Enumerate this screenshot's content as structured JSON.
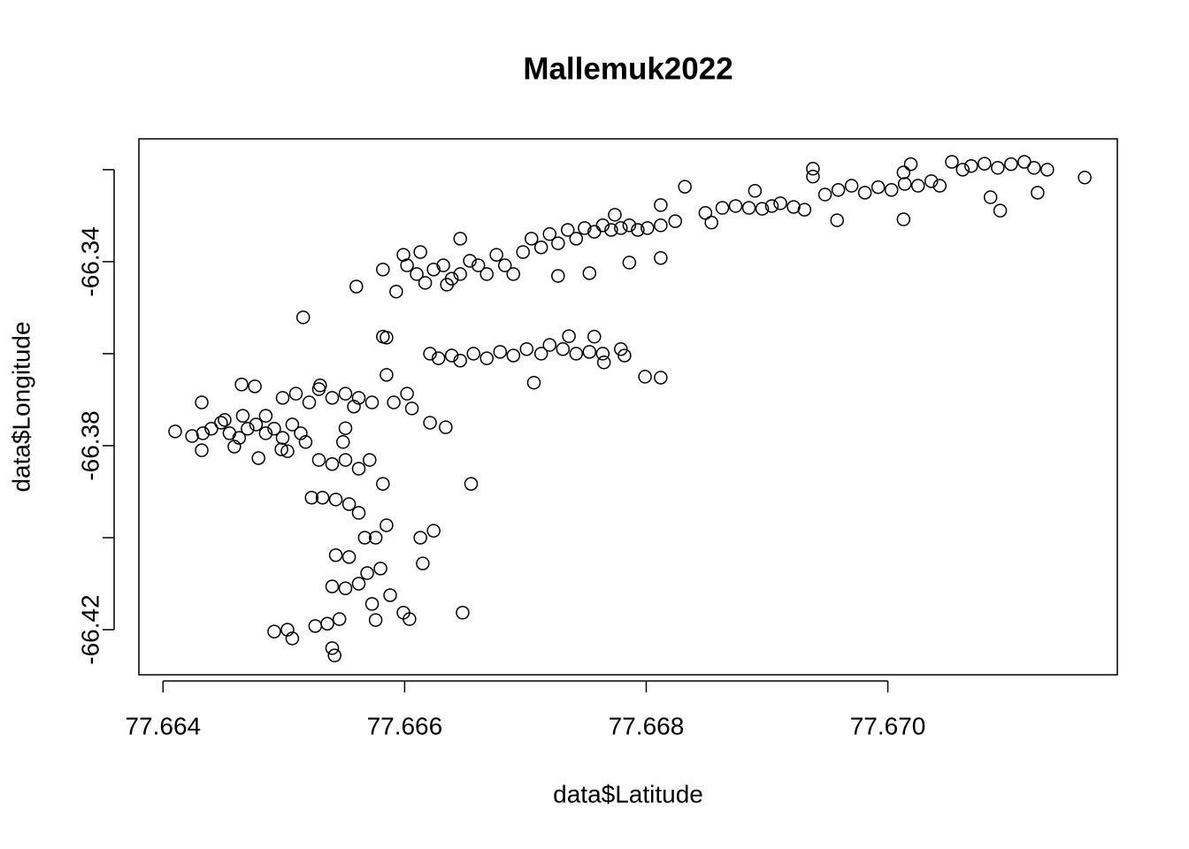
{
  "chart_data": {
    "type": "scatter",
    "title": "Mallemuk2022",
    "x_label": "data$Latitude",
    "y_label": "data$Longitude",
    "color": "#000000",
    "xlim": [
      77.6638,
      77.6719
    ],
    "ylim": [
      -66.4298,
      -66.3133
    ],
    "xticks": [
      77.664,
      77.666,
      77.668,
      {
        "value": 77.67,
        "label": "77.670"
      }
    ],
    "yticks": [
      {
        "value": -66.32,
        "label": null
      },
      -66.34,
      {
        "value": -66.36,
        "label": null
      },
      -66.38,
      {
        "value": -66.4,
        "label": null
      },
      -66.42
    ],
    "x": [
      77.6641,
      77.66424,
      77.66433,
      77.66432,
      77.6644,
      77.66448,
      77.66455,
      77.66463,
      77.6647,
      77.66477,
      77.66485,
      77.66492,
      77.66499,
      77.66507,
      77.66514,
      77.66459,
      77.66479,
      77.66498,
      77.66465,
      77.66476,
      77.66432,
      77.66451,
      77.66466,
      77.66485,
      77.66503,
      77.66518,
      77.66499,
      77.6651,
      77.66521,
      77.66529,
      77.6654,
      77.66551,
      77.66562,
      77.66573,
      77.66585,
      77.66591,
      77.66602,
      77.66606,
      77.66621,
      77.66634,
      77.6653,
      77.66558,
      77.66529,
      77.6654,
      77.66551,
      77.66562,
      77.66571,
      77.66582,
      77.66523,
      77.66532,
      77.66543,
      77.66554,
      77.66562,
      77.66567,
      77.66576,
      77.66585,
      77.66543,
      77.66554,
      77.66569,
      77.6658,
      77.6654,
      77.66551,
      77.66562,
      77.66573,
      77.66588,
      77.66599,
      77.66604,
      77.66492,
      77.66503,
      77.66507,
      77.66526,
      77.66536,
      77.66546,
      77.6654,
      77.66542,
      77.66576,
      77.66613,
      77.66624,
      77.66615,
      77.66655,
      77.66648,
      77.66582,
      77.66585,
      77.66516,
      77.6656,
      77.66549,
      77.66551,
      77.66582,
      77.66593,
      77.66602,
      77.6661,
      77.66617,
      77.66624,
      77.66632,
      77.66639,
      77.66646,
      77.66654,
      77.66661,
      77.66668,
      77.66676,
      77.66683,
      77.6669,
      77.66646,
      77.66599,
      77.66613,
      77.66635,
      77.66698,
      77.66705,
      77.66713,
      77.6672,
      77.66727,
      77.66735,
      77.66742,
      77.66749,
      77.66757,
      77.66764,
      77.66771,
      77.66779,
      77.66786,
      77.66793,
      77.66801,
      77.66812,
      77.66824,
      77.66812,
      77.66774,
      77.66753,
      77.66727,
      77.66786,
      77.66812,
      77.66621,
      77.66628,
      77.66639,
      77.66646,
      77.66657,
      77.66668,
      77.66679,
      77.6669,
      77.66701,
      77.66713,
      77.6672,
      77.66731,
      77.66742,
      77.66753,
      77.66764,
      77.66779,
      77.66782,
      77.66765,
      77.66707,
      77.66799,
      77.66812,
      77.66736,
      77.66757,
      77.66832,
      77.66849,
      77.66854,
      77.66863,
      77.66874,
      77.66885,
      77.6689,
      77.66896,
      77.66904,
      77.66911,
      77.66922,
      77.66931,
      77.66938,
      77.66938,
      77.66948,
      77.66959,
      77.6697,
      77.66981,
      77.66992,
      77.67003,
      77.67014,
      77.67025,
      77.67036,
      77.67043,
      77.66958,
      77.67013,
      77.67019,
      77.67013,
      77.67062,
      77.67069,
      77.6708,
      77.67091,
      77.67102,
      77.67113,
      77.67121,
      77.67132,
      77.67163,
      77.67093,
      77.67085,
      77.67124,
      77.67053
    ],
    "y": [
      -66.3769,
      -66.3779,
      -66.3773,
      -66.3706,
      -66.3763,
      -66.375,
      -66.3773,
      -66.3783,
      -66.3763,
      -66.3754,
      -66.3773,
      -66.3763,
      -66.3783,
      -66.3754,
      -66.3773,
      -66.3802,
      -66.3827,
      -66.3808,
      -66.3667,
      -66.3671,
      -66.381,
      -66.3744,
      -66.3735,
      -66.3735,
      -66.3812,
      -66.3792,
      -66.3696,
      -66.3687,
      -66.3706,
      -66.3677,
      -66.3696,
      -66.3687,
      -66.3696,
      -66.3706,
      -66.3646,
      -66.3706,
      -66.3687,
      -66.3719,
      -66.375,
      -66.376,
      -66.3669,
      -66.3715,
      -66.3831,
      -66.384,
      -66.3831,
      -66.385,
      -66.3831,
      -66.3883,
      -66.3913,
      -66.3913,
      -66.3917,
      -66.3927,
      -66.3946,
      -66.4,
      -66.4,
      -66.3973,
      -66.4038,
      -66.4042,
      -66.4077,
      -66.4067,
      -66.4106,
      -66.411,
      -66.41,
      -66.4144,
      -66.4125,
      -66.4163,
      -66.4177,
      -66.4204,
      -66.42,
      -66.4219,
      -66.4192,
      -66.4187,
      -66.4177,
      -66.424,
      -66.4256,
      -66.4179,
      -66.4,
      -66.3985,
      -66.4056,
      -66.3883,
      -66.4163,
      -66.3563,
      -66.3565,
      -66.3521,
      -66.3454,
      -66.3792,
      -66.3762,
      -66.3417,
      -66.3465,
      -66.3408,
      -66.3427,
      -66.3446,
      -66.3417,
      -66.3408,
      -66.3437,
      -66.3427,
      -66.3398,
      -66.3408,
      -66.3427,
      -66.3385,
      -66.3408,
      -66.3427,
      -66.335,
      -66.3385,
      -66.3379,
      -66.345,
      -66.3379,
      -66.335,
      -66.3369,
      -66.334,
      -66.336,
      -66.3331,
      -66.335,
      -66.3327,
      -66.3335,
      -66.3321,
      -66.3331,
      -66.3327,
      -66.3321,
      -66.3331,
      -66.3327,
      -66.3321,
      -66.3312,
      -66.3277,
      -66.3298,
      -66.3425,
      -66.3431,
      -66.3402,
      -66.3392,
      -66.36,
      -66.361,
      -66.3604,
      -66.3615,
      -66.36,
      -66.361,
      -66.3596,
      -66.3604,
      -66.359,
      -66.36,
      -66.3581,
      -66.359,
      -66.36,
      -66.3596,
      -66.36,
      -66.359,
      -66.3604,
      -66.3619,
      -66.3663,
      -66.365,
      -66.3652,
      -66.3562,
      -66.3563,
      -66.3237,
      -66.3294,
      -66.3315,
      -66.3283,
      -66.3279,
      -66.3283,
      -66.3246,
      -66.3285,
      -66.3279,
      -66.3273,
      -66.3281,
      -66.3287,
      -66.3198,
      -66.3215,
      -66.3254,
      -66.3244,
      -66.3235,
      -66.325,
      -66.3238,
      -66.3244,
      -66.3231,
      -66.3235,
      -66.3225,
      -66.3235,
      -66.331,
      -66.3308,
      -66.3188,
      -66.3206,
      -66.32,
      -66.3192,
      -66.3187,
      -66.3196,
      -66.3188,
      -66.3183,
      -66.3196,
      -66.32,
      -66.3217,
      -66.3289,
      -66.326,
      -66.325,
      -66.3183
    ]
  }
}
